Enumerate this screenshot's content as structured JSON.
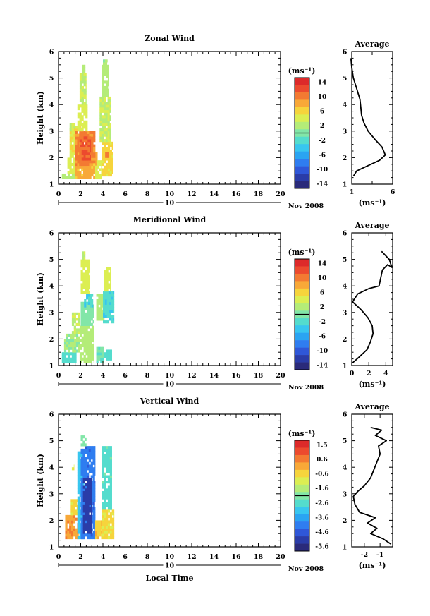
{
  "chart_data": [
    {
      "type": "heatmap",
      "title": "Zonal Wind",
      "ylabel": "Height (km)",
      "xlabel": "",
      "x_ticks": [
        "0",
        "2",
        "4",
        "6",
        "8",
        "10",
        "12",
        "14",
        "16",
        "18",
        "20"
      ],
      "y_ticks": [
        "1",
        "2",
        "3",
        "4",
        "5",
        "6"
      ],
      "xlim": [
        0,
        20
      ],
      "ylim": [
        1,
        6
      ],
      "date_label": "10",
      "date_month": "Nov 2008",
      "colorbar": {
        "unit": "(ms⁻¹)",
        "labels": [
          "14",
          "10",
          "6",
          "2",
          "-2",
          "-6",
          "-10",
          "-14"
        ],
        "range": [
          -16,
          16
        ]
      },
      "profile": {
        "title": "Average",
        "xlabel": "(ms⁻¹)",
        "x_ticks": [
          "1",
          "",
          "6"
        ],
        "xlim": [
          1,
          6
        ],
        "ylim": [
          1,
          6
        ],
        "y_ticks": [
          "1",
          "2",
          "3",
          "4",
          "5",
          "6"
        ],
        "points": [
          [
            1.2,
            1.3
          ],
          [
            1.6,
            1.5
          ],
          [
            3.0,
            1.7
          ],
          [
            4.4,
            1.9
          ],
          [
            5.1,
            2.1
          ],
          [
            4.7,
            2.4
          ],
          [
            3.8,
            2.7
          ],
          [
            3.0,
            3.0
          ],
          [
            2.5,
            3.3
          ],
          [
            2.2,
            3.6
          ],
          [
            2.1,
            3.9
          ],
          [
            2.0,
            4.2
          ],
          [
            1.6,
            4.6
          ],
          [
            1.2,
            5.0
          ],
          [
            1.0,
            5.4
          ],
          [
            0.9,
            5.75
          ]
        ]
      },
      "grid": [
        {
          "t0": 0.3,
          "t1": 1.5,
          "h0": 1.2,
          "h1": 1.4,
          "v": 2
        },
        {
          "t0": 0.8,
          "t1": 1.5,
          "h0": 1.4,
          "h1": 2.0,
          "v": 4
        },
        {
          "t0": 1.0,
          "t1": 2.0,
          "h0": 2.0,
          "h1": 3.2,
          "v": 5
        },
        {
          "t0": 1.5,
          "t1": 3.5,
          "h0": 1.2,
          "h1": 2.2,
          "v": 8
        },
        {
          "t0": 1.5,
          "t1": 3.3,
          "h0": 1.7,
          "h1": 3.0,
          "v": 10
        },
        {
          "t0": 1.9,
          "t1": 2.9,
          "h0": 1.9,
          "h1": 2.8,
          "v": 12
        },
        {
          "t0": 1.7,
          "t1": 2.6,
          "h0": 3.0,
          "h1": 4.0,
          "v": 4
        },
        {
          "t0": 1.9,
          "t1": 2.5,
          "h0": 4.0,
          "h1": 5.2,
          "v": 3
        },
        {
          "t0": 2.1,
          "t1": 2.4,
          "h0": 5.2,
          "h1": 5.5,
          "v": 2
        },
        {
          "t0": 3.3,
          "t1": 3.9,
          "h0": 1.2,
          "h1": 1.9,
          "v": 4
        },
        {
          "t0": 3.9,
          "t1": 4.9,
          "h0": 1.3,
          "h1": 2.6,
          "v": 6
        },
        {
          "t0": 3.7,
          "t1": 4.7,
          "h0": 2.6,
          "h1": 4.3,
          "v": 3
        },
        {
          "t0": 3.9,
          "t1": 4.5,
          "h0": 4.3,
          "h1": 5.5,
          "v": 2
        },
        {
          "t0": 4.0,
          "t1": 4.4,
          "h0": 5.5,
          "h1": 5.7,
          "v": 1
        },
        {
          "t0": 4.2,
          "t1": 4.5,
          "h0": 2.0,
          "h1": 2.2,
          "v": 11
        },
        {
          "t0": 1.0,
          "t1": 1.5,
          "h0": 3.0,
          "h1": 3.3,
          "v": 3
        }
      ]
    },
    {
      "type": "heatmap",
      "title": "Meridional Wind",
      "ylabel": "Height (km)",
      "xlabel": "",
      "x_ticks": [
        "0",
        "2",
        "4",
        "6",
        "8",
        "10",
        "12",
        "14",
        "16",
        "18",
        "20"
      ],
      "y_ticks": [
        "1",
        "2",
        "3",
        "4",
        "5",
        "6"
      ],
      "xlim": [
        0,
        20
      ],
      "ylim": [
        1,
        6
      ],
      "date_label": "10",
      "date_month": "Nov 2008",
      "colorbar": {
        "unit": "(ms⁻¹)",
        "labels": [
          "14",
          "10",
          "6",
          "2",
          "-2",
          "-6",
          "-10",
          "-14"
        ],
        "range": [
          -16,
          16
        ]
      },
      "profile": {
        "title": "Average",
        "xlabel": "(ms⁻¹)",
        "x_ticks": [
          "0",
          "2",
          "4"
        ],
        "xlim": [
          0,
          4.8
        ],
        "ylim": [
          1,
          6
        ],
        "y_ticks": [
          "1",
          "2",
          "3",
          "4",
          "5",
          "6"
        ],
        "points": [
          [
            0.1,
            1.1
          ],
          [
            0.8,
            1.3
          ],
          [
            1.8,
            1.6
          ],
          [
            2.2,
            1.9
          ],
          [
            2.5,
            2.2
          ],
          [
            2.4,
            2.5
          ],
          [
            1.9,
            2.8
          ],
          [
            1.1,
            3.1
          ],
          [
            0.1,
            3.4
          ],
          [
            0.7,
            3.7
          ],
          [
            2.0,
            3.9
          ],
          [
            3.2,
            4.0
          ],
          [
            3.4,
            4.3
          ],
          [
            3.6,
            4.6
          ],
          [
            4.2,
            4.8
          ],
          [
            4.7,
            4.7
          ],
          [
            4.4,
            5.0
          ],
          [
            3.5,
            5.3
          ]
        ]
      },
      "grid": [
        {
          "t0": 0.3,
          "t1": 1.6,
          "h0": 1.1,
          "h1": 1.5,
          "v": -2
        },
        {
          "t0": 0.5,
          "t1": 1.9,
          "h0": 1.5,
          "h1": 2.2,
          "v": 1
        },
        {
          "t0": 1.2,
          "t1": 1.9,
          "h0": 2.2,
          "h1": 3.0,
          "v": 3
        },
        {
          "t0": 1.9,
          "t1": 3.2,
          "h0": 1.1,
          "h1": 2.5,
          "v": 2
        },
        {
          "t0": 2.0,
          "t1": 3.2,
          "h0": 2.5,
          "h1": 3.4,
          "v": 0
        },
        {
          "t0": 2.3,
          "t1": 3.1,
          "h0": 3.2,
          "h1": 3.7,
          "v": -3
        },
        {
          "t0": 2.0,
          "t1": 2.8,
          "h0": 3.7,
          "h1": 5.0,
          "v": 4
        },
        {
          "t0": 2.1,
          "t1": 2.4,
          "h0": 5.0,
          "h1": 5.3,
          "v": 3
        },
        {
          "t0": 3.4,
          "t1": 4.1,
          "h0": 1.1,
          "h1": 1.7,
          "v": -1
        },
        {
          "t0": 3.4,
          "t1": 4.2,
          "h0": 2.7,
          "h1": 3.7,
          "v": 2
        },
        {
          "t0": 4.0,
          "t1": 5.0,
          "h0": 2.6,
          "h1": 3.8,
          "v": -3
        },
        {
          "t0": 4.1,
          "t1": 4.7,
          "h0": 3.8,
          "h1": 4.7,
          "v": 4
        },
        {
          "t0": 4.1,
          "t1": 4.8,
          "h0": 1.2,
          "h1": 1.6,
          "v": -2
        }
      ]
    },
    {
      "type": "heatmap",
      "title": "Vertical Wind",
      "ylabel": "Height (km)",
      "xlabel": "Local Time",
      "x_ticks": [
        "0",
        "2",
        "4",
        "6",
        "8",
        "10",
        "12",
        "14",
        "16",
        "18",
        "20"
      ],
      "y_ticks": [
        "1",
        "2",
        "3",
        "4",
        "5",
        "6"
      ],
      "xlim": [
        0,
        20
      ],
      "ylim": [
        1,
        6
      ],
      "date_label": "10",
      "date_month": "Nov 2008",
      "colorbar": {
        "unit": "(ms⁻¹)",
        "labels": [
          "1.5",
          "0.6",
          "-0.6",
          "-1.6",
          "-2.6",
          "-3.6",
          "-4.6",
          "-5.6"
        ],
        "range": [
          -6.2,
          2.0
        ]
      },
      "profile": {
        "title": "Average",
        "xlabel": "(ms⁻¹)",
        "x_ticks": [
          "-2",
          "-1"
        ],
        "x_tick_values": [
          -2,
          -1
        ],
        "xlim": [
          -2.8,
          -0.2
        ],
        "ylim": [
          1,
          6
        ],
        "y_ticks": [
          "1",
          "2",
          "3",
          "4",
          "5",
          "6"
        ],
        "points": [
          [
            -0.3,
            1.1
          ],
          [
            -0.8,
            1.3
          ],
          [
            -1.6,
            1.5
          ],
          [
            -1.2,
            1.7
          ],
          [
            -1.8,
            1.9
          ],
          [
            -1.3,
            2.1
          ],
          [
            -2.3,
            2.3
          ],
          [
            -2.6,
            2.6
          ],
          [
            -2.7,
            2.9
          ],
          [
            -2.4,
            3.1
          ],
          [
            -2.0,
            3.3
          ],
          [
            -1.6,
            3.6
          ],
          [
            -1.4,
            3.9
          ],
          [
            -1.2,
            4.2
          ],
          [
            -1.0,
            4.5
          ],
          [
            -1.1,
            4.8
          ],
          [
            -0.6,
            5.0
          ],
          [
            -1.3,
            5.2
          ],
          [
            -0.9,
            5.4
          ],
          [
            -1.6,
            5.5
          ]
        ]
      },
      "grid": [
        {
          "t0": 0.6,
          "t1": 1.8,
          "h0": 1.3,
          "h1": 2.2,
          "v": 0.2
        },
        {
          "t0": 1.1,
          "t1": 1.7,
          "h0": 2.2,
          "h1": 2.8,
          "v": -0.6
        },
        {
          "t0": 1.7,
          "t1": 2.3,
          "h0": 1.3,
          "h1": 4.6,
          "v": -3.2
        },
        {
          "t0": 2.0,
          "t1": 3.3,
          "h0": 1.3,
          "h1": 4.8,
          "v": -4.4
        },
        {
          "t0": 2.2,
          "t1": 3.0,
          "h0": 1.5,
          "h1": 3.6,
          "v": -5.4
        },
        {
          "t0": 2.0,
          "t1": 2.5,
          "h0": 4.8,
          "h1": 5.2,
          "v": -2.2
        },
        {
          "t0": 3.3,
          "t1": 3.9,
          "h0": 1.3,
          "h1": 2.0,
          "v": -0.3
        },
        {
          "t0": 3.9,
          "t1": 4.8,
          "h0": 2.4,
          "h1": 4.8,
          "v": -2.6
        },
        {
          "t0": 3.9,
          "t1": 5.0,
          "h0": 1.3,
          "h1": 2.4,
          "v": -0.6
        },
        {
          "t0": 1.2,
          "t1": 1.4,
          "h0": 3.9,
          "h1": 4.1,
          "v": -0.8
        }
      ]
    }
  ],
  "palette": [
    "#2a2a7a",
    "#2a3ca8",
    "#2f57d8",
    "#2f7df0",
    "#2aa4f2",
    "#38c6ef",
    "#54dccd",
    "#82e6a8",
    "#b4ec78",
    "#dcee52",
    "#f6d43c",
    "#f8a838",
    "#f37a32",
    "#ec4a2e",
    "#dd2a2a"
  ]
}
